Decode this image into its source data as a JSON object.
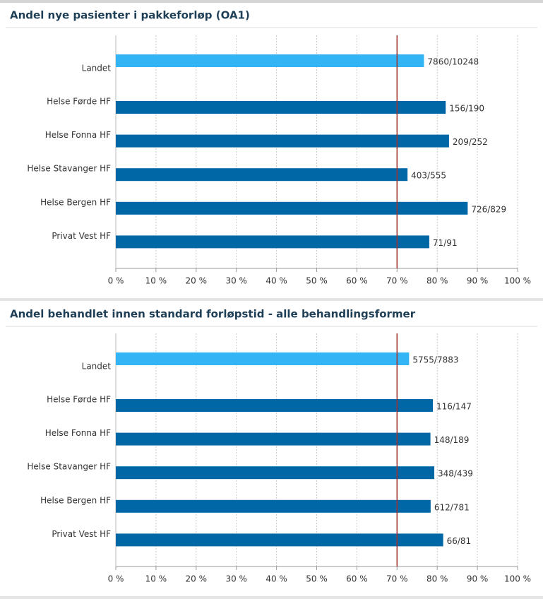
{
  "chart_data": [
    {
      "type": "hbar",
      "title": "Andel nye pasienter i pakkeforløp (OA1)",
      "categories": [
        "Landet",
        "Helse Førde HF",
        "Helse Fonna HF",
        "Helse Stavanger HF",
        "Helse Bergen HF",
        "Privat Vest HF"
      ],
      "values": [
        76.7,
        82.11,
        82.94,
        72.61,
        87.58,
        78.02
      ],
      "value_labels": [
        "7860/10248",
        "156/190",
        "209/252",
        "403/555",
        "726/829",
        "71/91"
      ],
      "colors": [
        "#33b5f5",
        "#0067a6",
        "#0067a6",
        "#0067a6",
        "#0067a6",
        "#0067a6"
      ],
      "xlim": [
        0,
        100
      ],
      "xticks": [
        {
          "value": 0,
          "label": "0 %"
        },
        {
          "value": 10,
          "label": "10 %"
        },
        {
          "value": 20,
          "label": "20 %"
        },
        {
          "value": 30,
          "label": "30 %"
        },
        {
          "value": 40,
          "label": "40 %"
        },
        {
          "value": 50,
          "label": "50 %"
        },
        {
          "value": 60,
          "label": "60 %"
        },
        {
          "value": 70,
          "label": "70 %"
        },
        {
          "value": 80,
          "label": "80 %"
        },
        {
          "value": 90,
          "label": "90 %"
        },
        {
          "value": 100,
          "label": "100 %"
        }
      ],
      "reference_line": 70,
      "reference_color": "#a0322d",
      "grid": true
    },
    {
      "type": "hbar",
      "title": "Andel behandlet innen standard forløpstid - alle behandlingsformer",
      "categories": [
        "Landet",
        "Helse Førde HF",
        "Helse Fonna HF",
        "Helse Stavanger HF",
        "Helse Bergen HF",
        "Privat Vest HF"
      ],
      "values": [
        73.0,
        78.91,
        78.31,
        79.27,
        78.36,
        81.48
      ],
      "value_labels": [
        "5755/7883",
        "116/147",
        "148/189",
        "348/439",
        "612/781",
        "66/81"
      ],
      "colors": [
        "#33b5f5",
        "#0067a6",
        "#0067a6",
        "#0067a6",
        "#0067a6",
        "#0067a6"
      ],
      "xlim": [
        0,
        100
      ],
      "xticks": [
        {
          "value": 0,
          "label": "0 %"
        },
        {
          "value": 10,
          "label": "10 %"
        },
        {
          "value": 20,
          "label": "20 %"
        },
        {
          "value": 30,
          "label": "30 %"
        },
        {
          "value": 40,
          "label": "40 %"
        },
        {
          "value": 50,
          "label": "50 %"
        },
        {
          "value": 60,
          "label": "60 %"
        },
        {
          "value": 70,
          "label": "70 %"
        },
        {
          "value": 80,
          "label": "80 %"
        },
        {
          "value": 90,
          "label": "90 %"
        },
        {
          "value": 100,
          "label": "100 %"
        }
      ],
      "reference_line": 70,
      "reference_color": "#a0322d",
      "grid": true
    }
  ]
}
